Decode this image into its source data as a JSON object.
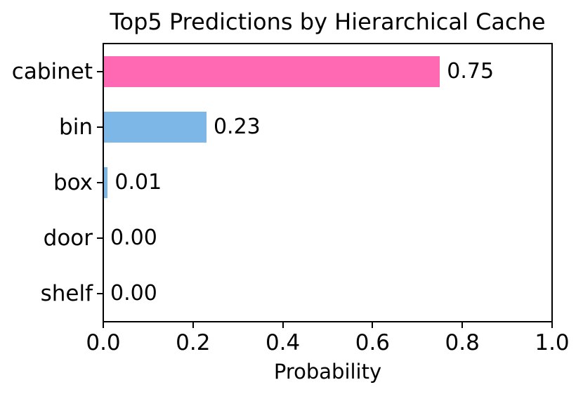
{
  "chart_data": {
    "type": "bar",
    "orientation": "horizontal",
    "title": "Top5 Predictions by Hierarchical Cache",
    "xlabel": "Probability",
    "ylabel": "",
    "categories": [
      "cabinet",
      "bin",
      "box",
      "door",
      "shelf"
    ],
    "values": [
      0.75,
      0.23,
      0.01,
      0.0,
      0.0
    ],
    "value_labels": [
      "0.75",
      "0.23",
      "0.01",
      "0.00",
      "0.00"
    ],
    "bar_colors": [
      "#FF69B4",
      "#7DB7E8",
      "#7DB7E8",
      "#7DB7E8",
      "#7DB7E8"
    ],
    "highlight_color": "#FF69B4",
    "default_bar_color": "#7DB7E8",
    "xlim": [
      0.0,
      1.0
    ],
    "x_tick_labels": [
      "0.0",
      "0.2",
      "0.4",
      "0.6",
      "0.8",
      "1.0"
    ],
    "x_tick_values": [
      0.0,
      0.2,
      0.4,
      0.6,
      0.8,
      1.0
    ],
    "grid": false,
    "legend": null,
    "axis_color": "#000000",
    "text_color": "#000000",
    "background_color": "#FFFFFF"
  }
}
